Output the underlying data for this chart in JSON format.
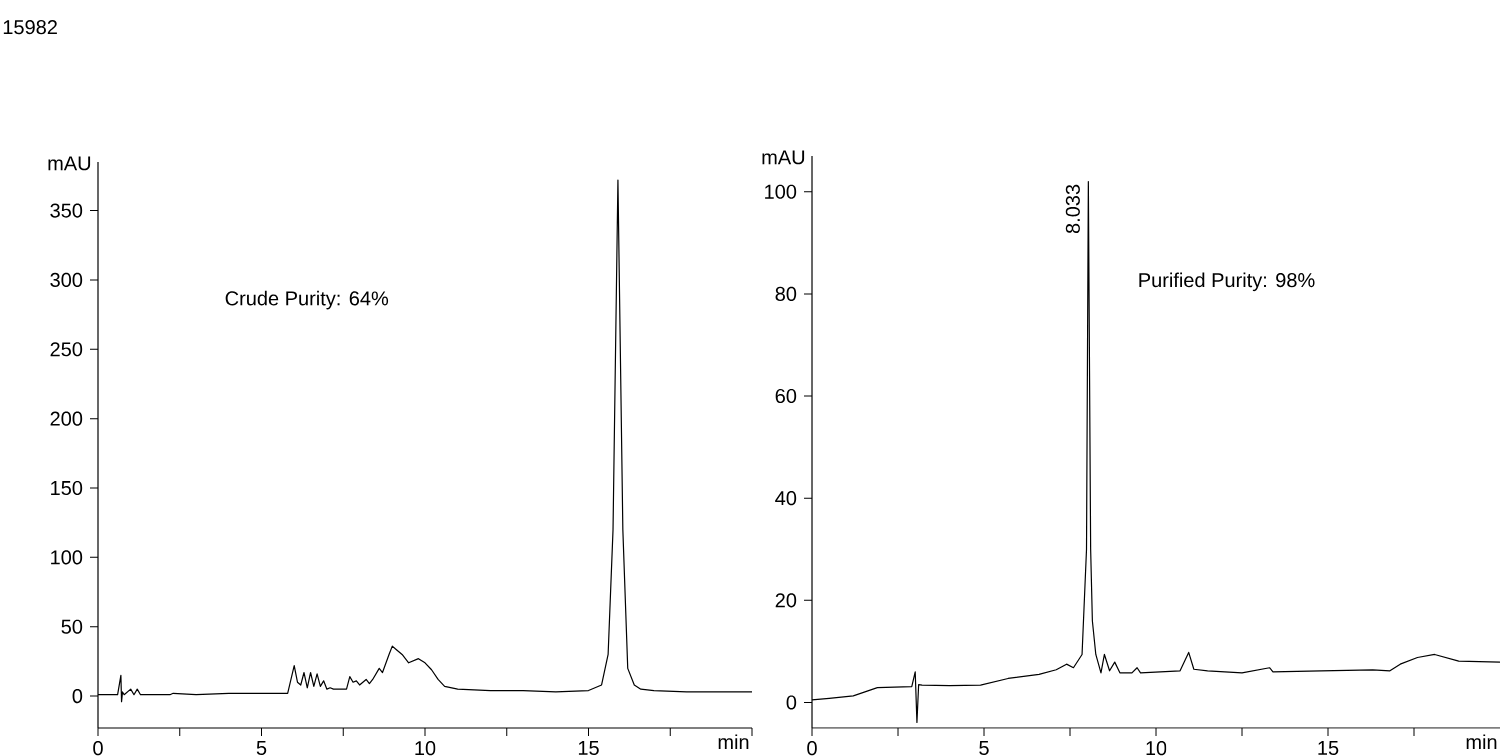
{
  "chart_data": [
    {
      "type": "line",
      "annotations": [
        "15982",
        "Crude Purity: 64%"
      ],
      "xlabel": "min",
      "ylabel": "mAU",
      "xlim": [
        0,
        20
      ],
      "ylim": [
        -23,
        385
      ],
      "xticks": [
        0,
        {
          "value": 2.5,
          "label": null
        },
        5,
        {
          "value": 7.5,
          "label": null
        },
        10,
        {
          "value": 12.5,
          "label": null
        },
        15,
        {
          "value": 17.5,
          "label": null
        },
        {
          "value": 20,
          "label": null
        }
      ],
      "yticks": [
        0,
        50,
        100,
        150,
        200,
        250,
        300,
        350
      ],
      "x": [
        0,
        0.6,
        0.7,
        0.72,
        0.75,
        0.8,
        1.0,
        1.1,
        1.2,
        1.3,
        1.5,
        2.2,
        2.3,
        3,
        4,
        5,
        5.8,
        6.0,
        6.1,
        6.2,
        6.3,
        6.4,
        6.5,
        6.6,
        6.7,
        6.8,
        6.9,
        7.0,
        7.1,
        7.2,
        7.6,
        7.7,
        7.8,
        7.9,
        8.0,
        8.2,
        8.3,
        8.4,
        8.6,
        8.7,
        8.9,
        9.0,
        9.1,
        9.3,
        9.5,
        9.8,
        10.0,
        10.2,
        10.4,
        10.6,
        11,
        12,
        13,
        14,
        15,
        15.4,
        15.6,
        15.75,
        15.9,
        16.05,
        16.2,
        16.4,
        16.6,
        17,
        18,
        19,
        20
      ],
      "values": [
        1,
        1,
        15,
        -4,
        3,
        1,
        5,
        1,
        5,
        1,
        1,
        1,
        2,
        1,
        2,
        2,
        2,
        22,
        10,
        8,
        17,
        6,
        17,
        7,
        16,
        7,
        11,
        5,
        6,
        5,
        5,
        14,
        10,
        11,
        8,
        12,
        9,
        12,
        20,
        17,
        30,
        36,
        34,
        30,
        24,
        27,
        24,
        19,
        12,
        7,
        5,
        4,
        4,
        3,
        4,
        8,
        30,
        120,
        372,
        120,
        20,
        8,
        5,
        4,
        3,
        3,
        3
      ],
      "color": "#000000"
    },
    {
      "type": "line",
      "annotations": [
        {
          "text": "8.033",
          "x": 8.033,
          "y": 102
        },
        "Purified Purity: 98%"
      ],
      "xlabel": "min",
      "ylabel": "mAU",
      "xlim": [
        0,
        20
      ],
      "ylim": [
        -5,
        107
      ],
      "xticks": [
        0,
        {
          "value": 2.5,
          "label": null
        },
        5,
        {
          "value": 7.5,
          "label": null
        },
        10,
        {
          "value": 12.5,
          "label": null
        },
        15,
        {
          "value": 17.5,
          "label": null
        }
      ],
      "yticks": [
        0,
        20,
        40,
        60,
        80,
        100
      ],
      "x": [
        0,
        0.5,
        1.2,
        1.9,
        2.9,
        3.0,
        3.05,
        3.1,
        3.2,
        4.0,
        4.9,
        5.7,
        6.6,
        7.1,
        7.4,
        7.6,
        7.85,
        7.98,
        8.033,
        8.1,
        8.15,
        8.25,
        8.4,
        8.5,
        8.65,
        8.8,
        8.95,
        9.3,
        9.45,
        9.55,
        10.7,
        10.95,
        11.1,
        11.5,
        12.5,
        13.3,
        13.4,
        14.8,
        16.3,
        16.8,
        17.1,
        17.6,
        18.1,
        18.8,
        20
      ],
      "values": [
        0.5,
        0.8,
        1.3,
        2.9,
        3.1,
        6,
        -3.9,
        3.5,
        3.4,
        3.3,
        3.4,
        4.7,
        5.5,
        6.4,
        7.5,
        6.8,
        9.4,
        30,
        102,
        30,
        16,
        9.4,
        5.8,
        9.4,
        6.2,
        7.9,
        5.8,
        5.8,
        6.8,
        5.8,
        6.2,
        9.8,
        6.5,
        6.2,
        5.8,
        6.8,
        6,
        6.2,
        6.4,
        6.2,
        7.5,
        8.8,
        9.4,
        8.1,
        7.9
      ],
      "color": "#000000"
    }
  ]
}
